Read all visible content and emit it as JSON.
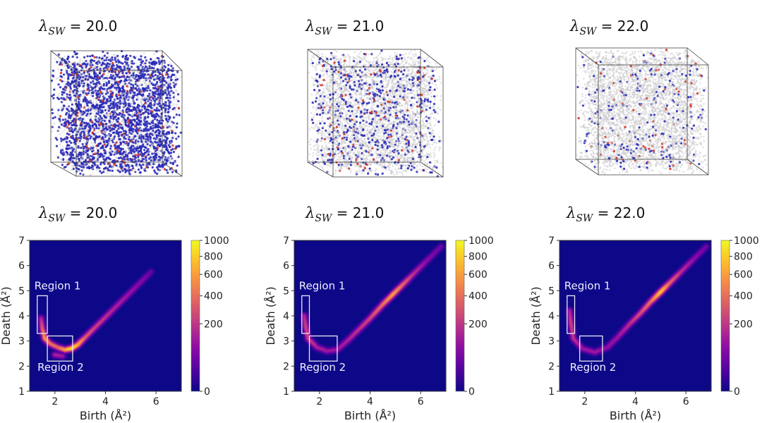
{
  "titles": {
    "lambda": "λ",
    "subscript": "SW",
    "cubes": [
      "= 20.0",
      "= 21.0",
      "= 22.0"
    ],
    "plots": [
      "= 20.0",
      "= 21.0",
      "= 22.0"
    ]
  },
  "particle_colors": {
    "gray": "#c8c8cc",
    "blue": "#2a2ab8",
    "red": "#d23a2a"
  },
  "chart_data": [
    {
      "type": "heatmap",
      "title": "λSW = 20.0",
      "xlabel": "Birth (Å²)",
      "ylabel": "Death (Å²)",
      "xlim": [
        1,
        7
      ],
      "ylim": [
        1,
        7
      ],
      "xticks": [
        "2",
        "4",
        "6"
      ],
      "yticks": [
        "1",
        "2",
        "3",
        "4",
        "5",
        "6",
        "7"
      ],
      "colorbar": {
        "ticks": [
          "0",
          "200",
          "400",
          "600",
          "800",
          "1000"
        ],
        "tick_values": [
          0,
          200,
          400,
          600,
          800,
          1000
        ],
        "range": [
          0,
          1000
        ],
        "norm": "sqrt",
        "colormap": "plasma"
      },
      "regions": [
        {
          "label": "Region 1",
          "x": [
            1.3,
            1.7
          ],
          "y": [
            3.3,
            4.8
          ]
        },
        {
          "label": "Region 2",
          "x": [
            1.7,
            2.7
          ],
          "y": [
            2.2,
            3.2
          ]
        }
      ],
      "ridge": [
        [
          1.45,
          3.9,
          150
        ],
        [
          1.5,
          3.5,
          350
        ],
        [
          1.6,
          3.1,
          600
        ],
        [
          1.8,
          2.9,
          450
        ],
        [
          2.1,
          2.75,
          400
        ],
        [
          2.4,
          2.65,
          650
        ],
        [
          2.65,
          2.7,
          950
        ],
        [
          2.9,
          2.85,
          700
        ],
        [
          3.2,
          3.15,
          350
        ],
        [
          3.6,
          3.55,
          250
        ],
        [
          4.0,
          3.95,
          200
        ],
        [
          4.5,
          4.45,
          150
        ],
        [
          5.0,
          4.95,
          110
        ],
        [
          5.5,
          5.45,
          70
        ],
        [
          5.8,
          5.75,
          40
        ],
        [
          2.0,
          2.45,
          150
        ],
        [
          2.3,
          2.4,
          120
        ]
      ]
    },
    {
      "type": "heatmap",
      "title": "λSW = 21.0",
      "xlabel": "Birth (Å²)",
      "ylabel": "Death (Å²)",
      "xlim": [
        1,
        7
      ],
      "ylim": [
        1,
        7
      ],
      "xticks": [
        "2",
        "4",
        "6"
      ],
      "yticks": [
        "1",
        "2",
        "3",
        "4",
        "5",
        "6",
        "7"
      ],
      "colorbar": {
        "ticks": [
          "0",
          "200",
          "400",
          "600",
          "800",
          "1000"
        ],
        "tick_values": [
          0,
          200,
          400,
          600,
          800,
          1000
        ],
        "range": [
          0,
          1000
        ],
        "norm": "sqrt",
        "colormap": "plasma"
      },
      "regions": [
        {
          "label": "Region 1",
          "x": [
            1.3,
            1.6
          ],
          "y": [
            3.3,
            4.8
          ]
        },
        {
          "label": "Region 2",
          "x": [
            1.6,
            2.7
          ],
          "y": [
            2.2,
            3.2
          ]
        }
      ],
      "ridge": [
        [
          1.4,
          4.0,
          150
        ],
        [
          1.45,
          3.6,
          250
        ],
        [
          1.55,
          3.1,
          250
        ],
        [
          1.9,
          2.75,
          150
        ],
        [
          2.3,
          2.6,
          120
        ],
        [
          2.7,
          2.65,
          120
        ],
        [
          3.1,
          3.0,
          150
        ],
        [
          3.5,
          3.4,
          200
        ],
        [
          4.0,
          3.9,
          280
        ],
        [
          4.5,
          4.45,
          450
        ],
        [
          4.9,
          4.85,
          650
        ],
        [
          5.2,
          5.15,
          450
        ],
        [
          5.7,
          5.65,
          200
        ],
        [
          6.2,
          6.15,
          100
        ],
        [
          6.8,
          6.75,
          50
        ]
      ]
    },
    {
      "type": "heatmap",
      "title": "λSW = 22.0",
      "xlabel": "Birth (Å²)",
      "ylabel": "Death (Å²)",
      "xlim": [
        1,
        7
      ],
      "ylim": [
        1,
        7
      ],
      "xticks": [
        "2",
        "4",
        "6"
      ],
      "yticks": [
        "1",
        "2",
        "3",
        "4",
        "5",
        "6",
        "7"
      ],
      "colorbar": {
        "ticks": [
          "0",
          "200",
          "400",
          "600",
          "800",
          "1000"
        ],
        "tick_values": [
          0,
          200,
          400,
          600,
          800,
          1000
        ],
        "range": [
          0,
          1000
        ],
        "norm": "sqrt",
        "colormap": "plasma"
      },
      "regions": [
        {
          "label": "Region 1",
          "x": [
            1.3,
            1.6
          ],
          "y": [
            3.3,
            4.8
          ]
        },
        {
          "label": "Region 2",
          "x": [
            1.8,
            2.7
          ],
          "y": [
            2.2,
            3.2
          ]
        }
      ],
      "ridge": [
        [
          1.4,
          4.2,
          150
        ],
        [
          1.45,
          3.7,
          250
        ],
        [
          1.55,
          3.1,
          200
        ],
        [
          1.9,
          2.7,
          120
        ],
        [
          2.4,
          2.55,
          120
        ],
        [
          2.9,
          2.75,
          100
        ],
        [
          3.3,
          3.15,
          120
        ],
        [
          3.8,
          3.7,
          200
        ],
        [
          4.2,
          4.1,
          300
        ],
        [
          4.6,
          4.55,
          450
        ],
        [
          5.0,
          4.95,
          850
        ],
        [
          5.3,
          5.25,
          450
        ],
        [
          5.8,
          5.75,
          200
        ],
        [
          6.3,
          6.25,
          100
        ],
        [
          6.8,
          6.75,
          50
        ]
      ]
    }
  ]
}
